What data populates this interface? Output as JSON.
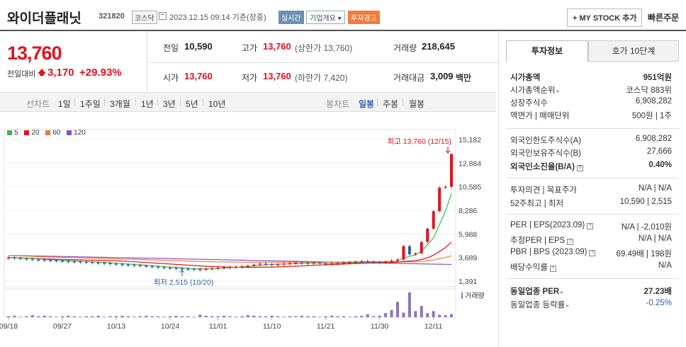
{
  "header": {
    "name": "와이더플래닛",
    "code": "321820",
    "market": "코스닥",
    "timestamp": "2023.12.15 09:14 기준(장중)",
    "realtime": "실시간",
    "overview": "기업개요 ▾",
    "warning": "투자경고",
    "my_stock": "+ MY STOCK 추가",
    "quick_order": "빠른주문"
  },
  "price": {
    "current": "13,760",
    "change_label": "전일대비",
    "change": "3,170",
    "change_pct": "+29.93%"
  },
  "quote": {
    "prev_label": "전일",
    "prev": "10,590",
    "high_label": "고가",
    "high": "13,760",
    "high_sub": "(상한가 13,760)",
    "volume_label": "거래량",
    "volume": "218,645",
    "open_label": "시가",
    "open": "13,760",
    "low_label": "저가",
    "low": "13,760",
    "low_sub": "(하한가 7,420)",
    "amount_label": "거래대금",
    "amount": "3,009",
    "amount_unit": "백만"
  },
  "tabs": {
    "line": "선차트",
    "periods": [
      "1일",
      "1주일",
      "3개월",
      "1년",
      "3년",
      "5년",
      "10년"
    ],
    "candle": "봉차트",
    "candles": [
      "일봉",
      "주봉",
      "월봉"
    ]
  },
  "chart_data": {
    "type": "candlestick",
    "legend": [
      {
        "name": "5",
        "color": "#3db64a"
      },
      {
        "name": "20",
        "color": "#e1131e"
      },
      {
        "name": "60",
        "color": "#f07d3b"
      },
      {
        "name": "120",
        "color": "#8e4ec6"
      }
    ],
    "y_ticks": [
      "15,182",
      "12,884",
      "10,585",
      "8,286",
      "5,988",
      "3,689",
      "1,391"
    ],
    "x_ticks": [
      "09/18",
      "09/27",
      "10/13",
      "10/24",
      "11/01",
      "11/10",
      "11/21",
      "11/30",
      "12/11"
    ],
    "high_label": "최고 13,760 (12/15)",
    "low_label": "최저 2,515 (10/20)",
    "volume_label": "거래량",
    "ylim": [
      1391,
      15182
    ],
    "closes": [
      3700,
      3650,
      3600,
      3550,
      3500,
      3480,
      3450,
      3420,
      3380,
      3350,
      3320,
      3300,
      3280,
      3250,
      3200,
      3180,
      3150,
      3100,
      3050,
      3000,
      2980,
      2950,
      2900,
      2850,
      2800,
      2750,
      2700,
      2680,
      2650,
      2600,
      2580,
      2550,
      2560,
      2600,
      2650,
      2700,
      2750,
      2780,
      2800,
      2850,
      2900,
      3000,
      3100,
      3050,
      3000,
      3050,
      3100,
      3150,
      3200,
      3180,
      3150,
      3200,
      3100,
      3050,
      3100,
      3150,
      3200,
      3250,
      3300,
      3350,
      3300,
      3250,
      3200,
      3300,
      3400,
      3500,
      4800,
      4000,
      4100,
      5200,
      6500,
      8200,
      10500,
      10590,
      13760
    ],
    "volumes": [
      2,
      3,
      1,
      2,
      4,
      2,
      3,
      2,
      1,
      2,
      3,
      2,
      1,
      2,
      2,
      3,
      1,
      2,
      2,
      3,
      2,
      1,
      2,
      3,
      2,
      2,
      1,
      2,
      3,
      2,
      2,
      1,
      5,
      3,
      2,
      2,
      3,
      2,
      1,
      2,
      4,
      3,
      2,
      2,
      3,
      2,
      1,
      2,
      2,
      3,
      2,
      2,
      1,
      2,
      3,
      2,
      2,
      1,
      2,
      3,
      6,
      2,
      3,
      8,
      14,
      30,
      9,
      48,
      12,
      22,
      8,
      12,
      5,
      4,
      6
    ]
  },
  "panel": {
    "tab_active": "투자정보",
    "tab_other": "호가 10단계",
    "rows": [
      {
        "label": "시가총액",
        "value": "951억원"
      },
      {
        "label": "시가총액순위",
        "value": "코스닥 883위"
      },
      {
        "label": "상장주식수",
        "value": "6,908,282"
      },
      {
        "label": "액면가 | 매매단위",
        "value": "500원 | 1주"
      },
      {
        "label": "외국인한도주식수(A)",
        "value": "6,908,282"
      },
      {
        "label": "외국인보유주식수(B)",
        "value": "27,666"
      },
      {
        "label": "외국인소진율(B/A)",
        "value": "0.40%"
      },
      {
        "label": "투자의견 | 목표주가",
        "value": "N/A | N/A"
      },
      {
        "label": "52주최고 | 최저",
        "value": "10,590 | 2,515"
      },
      {
        "label": "PER | EPS(2023.09)",
        "value": "N/A | -2,010원"
      },
      {
        "label": "추정PER | EPS",
        "value": "N/A | N/A"
      },
      {
        "label": "PBR | BPS (2023.09)",
        "value": "69.49배 | 198원"
      },
      {
        "label": "배당수익률",
        "value": "N/A"
      },
      {
        "label": "동일업종 PER",
        "value": "27.23배"
      },
      {
        "label": "동일업종 등락률",
        "value": "-0.25%"
      }
    ]
  }
}
